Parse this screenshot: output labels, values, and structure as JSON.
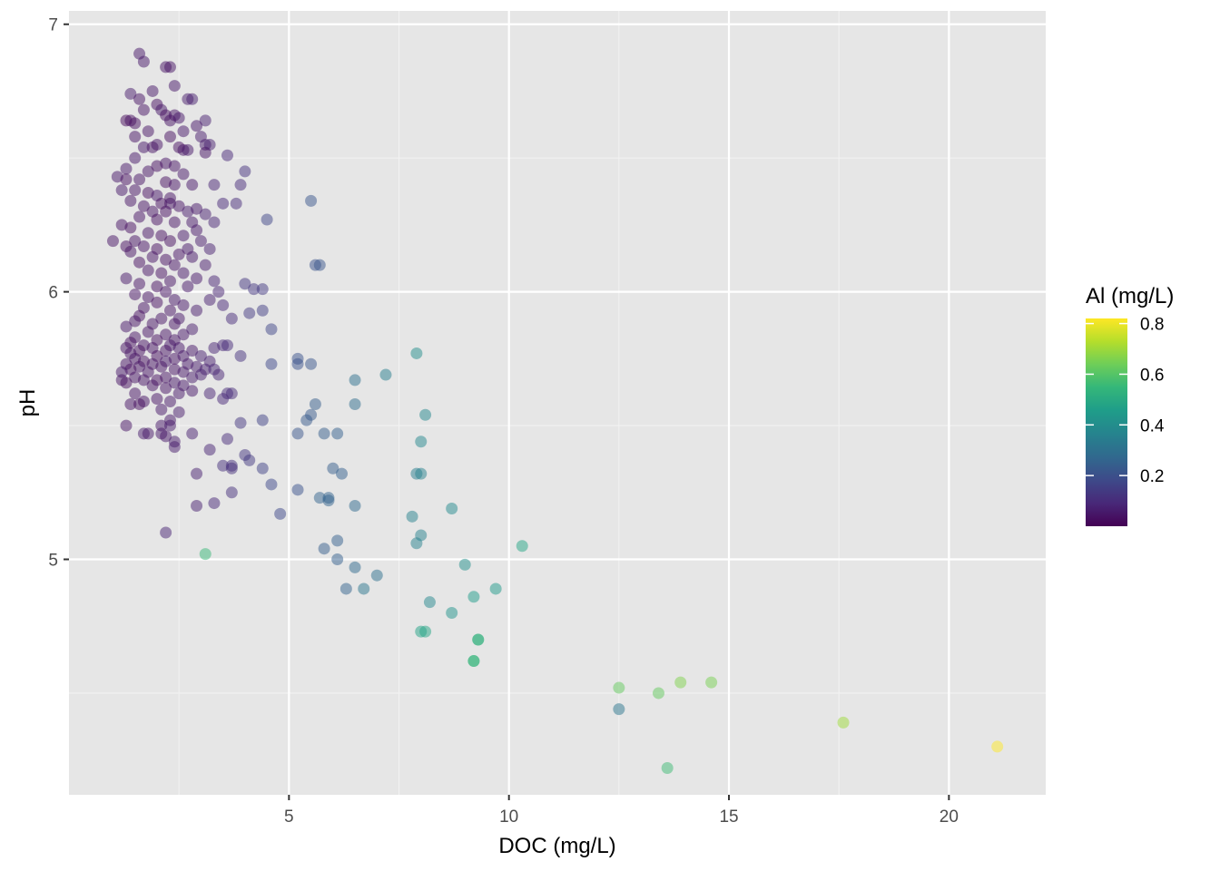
{
  "chart_data": {
    "type": "scatter",
    "title": "",
    "xlabel": "DOC (mg/L)",
    "ylabel": "pH",
    "xlim": [
      0.0,
      22.2
    ],
    "ylim": [
      4.12,
      7.05
    ],
    "x_ticks": [
      5,
      10,
      15,
      20
    ],
    "y_ticks": [
      5,
      6,
      7
    ],
    "x_tick_labels": [
      "5",
      "10",
      "15",
      "20"
    ],
    "y_tick_labels": [
      "5",
      "6",
      "7"
    ],
    "grid": true,
    "point_alpha": 0.5,
    "color_variable": "Al (mg/L)",
    "legend": {
      "title": "Al (mg/L)",
      "position": "right",
      "range": [
        0.0,
        0.82
      ],
      "ticks": [
        0.2,
        0.4,
        0.6,
        0.8
      ],
      "tick_labels": [
        "0.2",
        "0.4",
        "0.6",
        "0.8"
      ],
      "palette": [
        "#440154",
        "#482878",
        "#3e4989",
        "#31688e",
        "#26828e",
        "#1f9e89",
        "#35b779",
        "#6ece58",
        "#b5de2b",
        "#fde725"
      ]
    },
    "points": [
      [
        1.6,
        6.89,
        0.05
      ],
      [
        1.7,
        6.86,
        0.05
      ],
      [
        2.2,
        6.84,
        0.04
      ],
      [
        2.3,
        6.84,
        0.04
      ],
      [
        2.4,
        6.77,
        0.05
      ],
      [
        1.4,
        6.74,
        0.06
      ],
      [
        1.9,
        6.75,
        0.05
      ],
      [
        1.6,
        6.72,
        0.04
      ],
      [
        2.7,
        6.72,
        0.06
      ],
      [
        2.8,
        6.72,
        0.07
      ],
      [
        2.0,
        6.7,
        0.03
      ],
      [
        1.7,
        6.68,
        0.04
      ],
      [
        2.1,
        6.68,
        0.05
      ],
      [
        2.2,
        6.66,
        0.03
      ],
      [
        2.4,
        6.66,
        0.04
      ],
      [
        2.5,
        6.65,
        0.05
      ],
      [
        1.3,
        6.64,
        0.02
      ],
      [
        1.4,
        6.64,
        0.03
      ],
      [
        2.3,
        6.64,
        0.04
      ],
      [
        1.5,
        6.63,
        0.03
      ],
      [
        3.1,
        6.64,
        0.07
      ],
      [
        2.9,
        6.62,
        0.05
      ],
      [
        1.8,
        6.6,
        0.04
      ],
      [
        2.6,
        6.6,
        0.05
      ],
      [
        3.0,
        6.58,
        0.06
      ],
      [
        1.5,
        6.58,
        0.04
      ],
      [
        2.3,
        6.58,
        0.03
      ],
      [
        2.0,
        6.55,
        0.04
      ],
      [
        3.1,
        6.55,
        0.06
      ],
      [
        3.2,
        6.55,
        0.07
      ],
      [
        1.7,
        6.54,
        0.05
      ],
      [
        1.9,
        6.54,
        0.04
      ],
      [
        2.5,
        6.54,
        0.03
      ],
      [
        2.6,
        6.53,
        0.04
      ],
      [
        2.7,
        6.53,
        0.05
      ],
      [
        3.1,
        6.52,
        0.04
      ],
      [
        3.6,
        6.51,
        0.09
      ],
      [
        1.5,
        6.5,
        0.05
      ],
      [
        2.2,
        6.48,
        0.04
      ],
      [
        2.0,
        6.47,
        0.03
      ],
      [
        2.4,
        6.47,
        0.04
      ],
      [
        1.3,
        6.46,
        0.05
      ],
      [
        1.8,
        6.45,
        0.04
      ],
      [
        2.6,
        6.44,
        0.05
      ],
      [
        4.0,
        6.45,
        0.12
      ],
      [
        1.1,
        6.43,
        0.05
      ],
      [
        1.3,
        6.42,
        0.03
      ],
      [
        1.6,
        6.42,
        0.04
      ],
      [
        2.2,
        6.41,
        0.03
      ],
      [
        2.4,
        6.4,
        0.04
      ],
      [
        2.8,
        6.4,
        0.05
      ],
      [
        3.3,
        6.4,
        0.08
      ],
      [
        3.9,
        6.4,
        0.1
      ],
      [
        1.2,
        6.38,
        0.05
      ],
      [
        1.5,
        6.38,
        0.04
      ],
      [
        1.8,
        6.37,
        0.03
      ],
      [
        2.0,
        6.36,
        0.05
      ],
      [
        2.3,
        6.35,
        0.04
      ],
      [
        1.4,
        6.34,
        0.04
      ],
      [
        2.1,
        6.33,
        0.03
      ],
      [
        2.3,
        6.33,
        0.04
      ],
      [
        3.5,
        6.33,
        0.09
      ],
      [
        3.8,
        6.33,
        0.1
      ],
      [
        5.5,
        6.34,
        0.22
      ],
      [
        1.7,
        6.32,
        0.04
      ],
      [
        2.5,
        6.32,
        0.04
      ],
      [
        2.9,
        6.31,
        0.05
      ],
      [
        1.9,
        6.3,
        0.04
      ],
      [
        2.2,
        6.3,
        0.03
      ],
      [
        2.7,
        6.3,
        0.06
      ],
      [
        3.1,
        6.29,
        0.07
      ],
      [
        4.5,
        6.27,
        0.17
      ],
      [
        1.6,
        6.28,
        0.04
      ],
      [
        2.0,
        6.27,
        0.03
      ],
      [
        2.4,
        6.26,
        0.04
      ],
      [
        2.8,
        6.26,
        0.05
      ],
      [
        1.2,
        6.25,
        0.04
      ],
      [
        1.4,
        6.24,
        0.03
      ],
      [
        3.3,
        6.26,
        0.08
      ],
      [
        2.9,
        6.23,
        0.05
      ],
      [
        1.8,
        6.22,
        0.04
      ],
      [
        2.1,
        6.21,
        0.03
      ],
      [
        2.6,
        6.21,
        0.05
      ],
      [
        1.0,
        6.19,
        0.04
      ],
      [
        1.5,
        6.19,
        0.04
      ],
      [
        2.3,
        6.19,
        0.03
      ],
      [
        3.0,
        6.19,
        0.06
      ],
      [
        1.3,
        6.17,
        0.03
      ],
      [
        1.7,
        6.17,
        0.04
      ],
      [
        2.0,
        6.16,
        0.03
      ],
      [
        2.7,
        6.16,
        0.05
      ],
      [
        3.2,
        6.16,
        0.07
      ],
      [
        1.4,
        6.15,
        0.04
      ],
      [
        2.5,
        6.14,
        0.04
      ],
      [
        1.9,
        6.13,
        0.04
      ],
      [
        2.2,
        6.12,
        0.03
      ],
      [
        2.8,
        6.13,
        0.05
      ],
      [
        1.6,
        6.11,
        0.03
      ],
      [
        2.4,
        6.1,
        0.04
      ],
      [
        3.1,
        6.1,
        0.06
      ],
      [
        5.6,
        6.1,
        0.21
      ],
      [
        5.7,
        6.1,
        0.22
      ],
      [
        1.8,
        6.08,
        0.04
      ],
      [
        2.1,
        6.07,
        0.03
      ],
      [
        2.6,
        6.07,
        0.05
      ],
      [
        1.3,
        6.05,
        0.05
      ],
      [
        2.9,
        6.05,
        0.05
      ],
      [
        2.3,
        6.04,
        0.04
      ],
      [
        3.3,
        6.04,
        0.08
      ],
      [
        4.0,
        6.03,
        0.13
      ],
      [
        1.6,
        6.03,
        0.04
      ],
      [
        2.0,
        6.02,
        0.03
      ],
      [
        2.7,
        6.02,
        0.05
      ],
      [
        4.2,
        6.01,
        0.13
      ],
      [
        4.4,
        6.01,
        0.14
      ],
      [
        2.2,
        6.0,
        0.04
      ],
      [
        3.4,
        6.0,
        0.08
      ],
      [
        1.5,
        5.99,
        0.04
      ],
      [
        1.8,
        5.98,
        0.04
      ],
      [
        2.4,
        5.97,
        0.05
      ],
      [
        3.2,
        5.97,
        0.07
      ],
      [
        2.0,
        5.96,
        0.03
      ],
      [
        2.6,
        5.95,
        0.05
      ],
      [
        3.5,
        5.95,
        0.09
      ],
      [
        1.7,
        5.94,
        0.04
      ],
      [
        2.3,
        5.93,
        0.04
      ],
      [
        2.9,
        5.93,
        0.06
      ],
      [
        4.1,
        5.92,
        0.14
      ],
      [
        4.4,
        5.93,
        0.15
      ],
      [
        1.6,
        5.91,
        0.03
      ],
      [
        2.1,
        5.9,
        0.04
      ],
      [
        2.5,
        5.9,
        0.05
      ],
      [
        3.7,
        5.9,
        0.1
      ],
      [
        1.5,
        5.89,
        0.04
      ],
      [
        1.9,
        5.88,
        0.04
      ],
      [
        2.4,
        5.88,
        0.04
      ],
      [
        1.3,
        5.87,
        0.05
      ],
      [
        2.8,
        5.86,
        0.06
      ],
      [
        4.6,
        5.86,
        0.17
      ],
      [
        1.8,
        5.85,
        0.04
      ],
      [
        2.2,
        5.84,
        0.04
      ],
      [
        2.6,
        5.84,
        0.05
      ],
      [
        1.5,
        5.83,
        0.04
      ],
      [
        2.0,
        5.82,
        0.03
      ],
      [
        2.4,
        5.82,
        0.04
      ],
      [
        1.4,
        5.81,
        0.03
      ],
      [
        1.7,
        5.8,
        0.04
      ],
      [
        2.3,
        5.8,
        0.05
      ],
      [
        3.5,
        5.8,
        0.09
      ],
      [
        3.6,
        5.8,
        0.1
      ],
      [
        1.3,
        5.79,
        0.04
      ],
      [
        1.9,
        5.79,
        0.04
      ],
      [
        2.5,
        5.79,
        0.05
      ],
      [
        3.3,
        5.79,
        0.08
      ],
      [
        1.6,
        5.78,
        0.03
      ],
      [
        2.2,
        5.78,
        0.04
      ],
      [
        2.8,
        5.78,
        0.05
      ],
      [
        1.4,
        5.77,
        0.04
      ],
      [
        2.0,
        5.76,
        0.03
      ],
      [
        2.6,
        5.76,
        0.05
      ],
      [
        3.0,
        5.76,
        0.07
      ],
      [
        3.9,
        5.76,
        0.12
      ],
      [
        7.9,
        5.77,
        0.4
      ],
      [
        1.5,
        5.75,
        0.04
      ],
      [
        2.4,
        5.75,
        0.04
      ],
      [
        5.2,
        5.75,
        0.21
      ],
      [
        1.7,
        5.74,
        0.03
      ],
      [
        2.2,
        5.74,
        0.05
      ],
      [
        3.2,
        5.74,
        0.07
      ],
      [
        1.3,
        5.73,
        0.04
      ],
      [
        1.9,
        5.73,
        0.04
      ],
      [
        2.7,
        5.73,
        0.05
      ],
      [
        4.6,
        5.73,
        0.18
      ],
      [
        5.2,
        5.73,
        0.21
      ],
      [
        5.5,
        5.73,
        0.22
      ],
      [
        1.6,
        5.72,
        0.04
      ],
      [
        2.1,
        5.72,
        0.04
      ],
      [
        2.9,
        5.72,
        0.06
      ],
      [
        1.4,
        5.71,
        0.03
      ],
      [
        2.4,
        5.71,
        0.04
      ],
      [
        3.1,
        5.71,
        0.07
      ],
      [
        3.3,
        5.71,
        0.08
      ],
      [
        1.2,
        5.7,
        0.05
      ],
      [
        1.8,
        5.7,
        0.04
      ],
      [
        2.6,
        5.7,
        0.05
      ],
      [
        3.0,
        5.69,
        0.07
      ],
      [
        3.4,
        5.69,
        0.08
      ],
      [
        7.2,
        5.69,
        0.35
      ],
      [
        1.5,
        5.68,
        0.04
      ],
      [
        2.2,
        5.68,
        0.04
      ],
      [
        2.8,
        5.68,
        0.06
      ],
      [
        1.2,
        5.67,
        0.04
      ],
      [
        1.7,
        5.67,
        0.04
      ],
      [
        2.0,
        5.67,
        0.03
      ],
      [
        2.4,
        5.66,
        0.05
      ],
      [
        6.5,
        5.67,
        0.3
      ],
      [
        1.3,
        5.66,
        0.03
      ],
      [
        1.9,
        5.65,
        0.04
      ],
      [
        2.6,
        5.65,
        0.05
      ],
      [
        2.2,
        5.64,
        0.04
      ],
      [
        2.8,
        5.63,
        0.05
      ],
      [
        1.5,
        5.62,
        0.04
      ],
      [
        2.5,
        5.62,
        0.05
      ],
      [
        3.2,
        5.62,
        0.08
      ],
      [
        3.6,
        5.62,
        0.1
      ],
      [
        3.7,
        5.62,
        0.1
      ],
      [
        2.0,
        5.6,
        0.04
      ],
      [
        1.7,
        5.59,
        0.04
      ],
      [
        2.3,
        5.59,
        0.05
      ],
      [
        3.5,
        5.6,
        0.09
      ],
      [
        1.4,
        5.58,
        0.04
      ],
      [
        1.6,
        5.58,
        0.03
      ],
      [
        6.5,
        5.58,
        0.29
      ],
      [
        5.6,
        5.58,
        0.24
      ],
      [
        2.1,
        5.56,
        0.05
      ],
      [
        2.5,
        5.55,
        0.06
      ],
      [
        8.1,
        5.54,
        0.38
      ],
      [
        5.5,
        5.54,
        0.23
      ],
      [
        5.4,
        5.52,
        0.23
      ],
      [
        4.4,
        5.52,
        0.16
      ],
      [
        2.3,
        5.52,
        0.05
      ],
      [
        3.9,
        5.51,
        0.13
      ],
      [
        1.3,
        5.5,
        0.04
      ],
      [
        2.1,
        5.5,
        0.05
      ],
      [
        2.3,
        5.5,
        0.06
      ],
      [
        1.8,
        5.47,
        0.05
      ],
      [
        1.7,
        5.47,
        0.06
      ],
      [
        2.1,
        5.47,
        0.05
      ],
      [
        2.2,
        5.46,
        0.05
      ],
      [
        2.8,
        5.47,
        0.07
      ],
      [
        5.2,
        5.47,
        0.22
      ],
      [
        5.8,
        5.47,
        0.24
      ],
      [
        6.1,
        5.47,
        0.25
      ],
      [
        8.0,
        5.44,
        0.38
      ],
      [
        3.6,
        5.45,
        0.1
      ],
      [
        2.4,
        5.42,
        0.06
      ],
      [
        3.2,
        5.41,
        0.08
      ],
      [
        2.4,
        5.44,
        0.06
      ],
      [
        4.0,
        5.39,
        0.13
      ],
      [
        4.1,
        5.37,
        0.14
      ],
      [
        3.5,
        5.35,
        0.11
      ],
      [
        3.7,
        5.35,
        0.11
      ],
      [
        3.7,
        5.34,
        0.11
      ],
      [
        4.4,
        5.34,
        0.16
      ],
      [
        6.0,
        5.34,
        0.24
      ],
      [
        6.2,
        5.32,
        0.25
      ],
      [
        7.9,
        5.32,
        0.35
      ],
      [
        8.0,
        5.32,
        0.36
      ],
      [
        2.9,
        5.32,
        0.07
      ],
      [
        4.6,
        5.28,
        0.18
      ],
      [
        5.2,
        5.26,
        0.21
      ],
      [
        3.7,
        5.25,
        0.11
      ],
      [
        5.7,
        5.23,
        0.26
      ],
      [
        5.9,
        5.22,
        0.26
      ],
      [
        5.9,
        5.23,
        0.26
      ],
      [
        2.9,
        5.2,
        0.07
      ],
      [
        3.3,
        5.21,
        0.09
      ],
      [
        6.5,
        5.2,
        0.28
      ],
      [
        8.7,
        5.19,
        0.39
      ],
      [
        4.8,
        5.17,
        0.18
      ],
      [
        7.8,
        5.16,
        0.36
      ],
      [
        2.2,
        5.1,
        0.08
      ],
      [
        8.0,
        5.09,
        0.36
      ],
      [
        6.1,
        5.07,
        0.25
      ],
      [
        7.9,
        5.06,
        0.36
      ],
      [
        10.3,
        5.05,
        0.48
      ],
      [
        5.8,
        5.04,
        0.24
      ],
      [
        3.1,
        5.02,
        0.55
      ],
      [
        6.1,
        5.0,
        0.25
      ],
      [
        9.0,
        4.98,
        0.41
      ],
      [
        6.5,
        4.97,
        0.28
      ],
      [
        7.0,
        4.94,
        0.3
      ],
      [
        6.3,
        4.89,
        0.26
      ],
      [
        6.7,
        4.89,
        0.32
      ],
      [
        9.7,
        4.89,
        0.44
      ],
      [
        9.2,
        4.86,
        0.45
      ],
      [
        8.2,
        4.84,
        0.38
      ],
      [
        8.7,
        4.8,
        0.42
      ],
      [
        8.0,
        4.73,
        0.47
      ],
      [
        8.1,
        4.73,
        0.48
      ],
      [
        9.3,
        4.7,
        0.52
      ],
      [
        9.3,
        4.7,
        0.53
      ],
      [
        9.2,
        4.62,
        0.53
      ],
      [
        9.2,
        4.62,
        0.54
      ],
      [
        12.5,
        4.52,
        0.62
      ],
      [
        14.6,
        4.54,
        0.65
      ],
      [
        13.9,
        4.54,
        0.66
      ],
      [
        13.4,
        4.5,
        0.62
      ],
      [
        12.5,
        4.44,
        0.32
      ],
      [
        17.6,
        4.39,
        0.7
      ],
      [
        21.1,
        4.3,
        0.82
      ],
      [
        13.6,
        4.22,
        0.56
      ]
    ]
  }
}
